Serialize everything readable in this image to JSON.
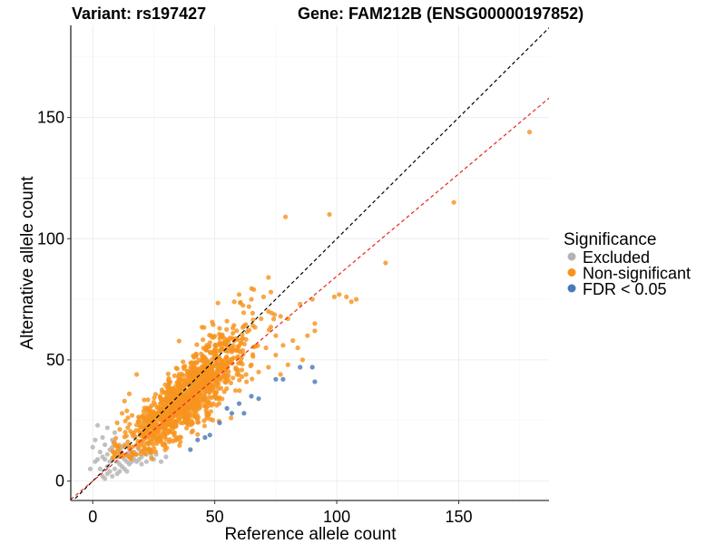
{
  "title": {
    "variant": "Variant: rs197427",
    "gene": "Gene: FAM212B (ENSG00000197852)"
  },
  "chart_data": {
    "type": "scatter",
    "xlabel": "Reference allele count",
    "ylabel": "Alternative allele count",
    "xlim": [
      -9,
      187
    ],
    "ylim": [
      -8,
      188
    ],
    "xticks": [
      0,
      50,
      100,
      150
    ],
    "yticks": [
      0,
      50,
      100,
      150
    ],
    "grid": true,
    "legend": {
      "title": "Significance",
      "position": "right",
      "entries": [
        {
          "label": "Excluded",
          "color": "#b3b3b3"
        },
        {
          "label": "Non-significant",
          "color": "#f7941d"
        },
        {
          "label": "FDR < 0.05",
          "color": "#4a7ab5"
        }
      ]
    },
    "reference_lines": [
      {
        "name": "identity",
        "slope": 1,
        "intercept": 0,
        "color": "#000000",
        "style": "dashed"
      },
      {
        "name": "fit",
        "slope": 0.845,
        "intercept": 0,
        "color": "#e8231f",
        "style": "dashed"
      }
    ],
    "series": [
      {
        "name": "Excluded",
        "color": "#b3b3b3",
        "points": [
          [
            2,
            23
          ],
          [
            1,
            17
          ],
          [
            0,
            14
          ],
          [
            1,
            8
          ],
          [
            -1,
            5
          ],
          [
            4,
            10
          ],
          [
            5,
            15
          ],
          [
            6,
            22
          ],
          [
            7,
            13
          ],
          [
            8,
            17
          ],
          [
            9,
            20
          ],
          [
            3,
            5
          ],
          [
            4,
            2
          ],
          [
            5,
            1
          ],
          [
            6,
            3
          ],
          [
            7,
            4
          ],
          [
            8,
            2
          ],
          [
            9,
            5
          ],
          [
            10,
            3
          ],
          [
            11,
            4
          ],
          [
            12,
            6
          ],
          [
            13,
            5
          ],
          [
            14,
            4
          ],
          [
            15,
            7
          ],
          [
            16,
            8
          ],
          [
            17,
            9
          ],
          [
            18,
            8
          ],
          [
            19,
            9
          ],
          [
            20,
            7
          ],
          [
            22,
            8
          ],
          [
            25,
            9
          ],
          [
            28,
            8
          ],
          [
            30,
            10
          ],
          [
            9,
            11
          ],
          [
            10,
            12
          ],
          [
            11,
            13
          ],
          [
            12,
            14
          ],
          [
            13,
            15
          ],
          [
            14,
            11
          ],
          [
            15,
            12
          ],
          [
            16,
            12
          ],
          [
            17,
            11
          ],
          [
            8,
            9
          ],
          [
            7,
            8
          ],
          [
            6,
            6
          ],
          [
            5,
            9
          ],
          [
            10,
            8
          ],
          [
            12,
            10
          ],
          [
            14,
            8
          ],
          [
            16,
            10
          ],
          [
            18,
            11
          ],
          [
            20,
            10
          ],
          [
            22,
            11
          ],
          [
            24,
            10
          ],
          [
            26,
            11
          ],
          [
            11,
            7
          ],
          [
            13,
            9
          ],
          [
            15,
            10
          ],
          [
            17,
            12
          ],
          [
            19,
            13
          ],
          [
            21,
            12
          ],
          [
            23,
            13
          ],
          [
            3,
            12
          ],
          [
            4,
            18
          ],
          [
            2,
            9
          ],
          [
            8,
            14
          ],
          [
            6,
            11
          ],
          [
            9,
            16
          ]
        ]
      },
      {
        "name": "Non-significant",
        "color": "#f7941d",
        "density": {
          "count": 1250,
          "x_mean": 38,
          "x_sd": 12,
          "x_min": 8,
          "x_max": 76,
          "y_slope": 0.86,
          "y_intercept": 2,
          "y_sd": 6.5,
          "y_min": 9,
          "seed": 42
        },
        "points": [
          [
            179,
            144
          ],
          [
            148,
            115
          ],
          [
            97,
            110
          ],
          [
            79,
            109
          ],
          [
            120,
            90
          ],
          [
            72,
            84
          ],
          [
            66,
            79
          ],
          [
            70,
            76
          ],
          [
            65,
            75
          ],
          [
            73,
            78
          ],
          [
            108,
            75
          ],
          [
            104,
            76
          ],
          [
            101,
            77
          ],
          [
            106,
            74
          ],
          [
            99,
            76
          ],
          [
            64,
            72
          ],
          [
            72,
            70
          ],
          [
            77,
            68
          ],
          [
            69,
            67
          ],
          [
            75,
            60
          ],
          [
            85,
            73
          ],
          [
            90,
            75
          ],
          [
            80,
            67
          ],
          [
            91,
            65
          ],
          [
            91,
            62
          ],
          [
            88,
            60
          ],
          [
            82,
            58
          ],
          [
            78,
            56
          ],
          [
            84,
            55
          ],
          [
            86,
            50
          ],
          [
            80,
            48
          ],
          [
            77,
            44
          ],
          [
            60,
            77
          ],
          [
            58,
            74
          ],
          [
            55,
            66
          ],
          [
            62,
            64
          ],
          [
            52,
            63
          ],
          [
            13,
            33
          ],
          [
            12,
            28
          ],
          [
            10,
            24
          ],
          [
            15,
            36
          ],
          [
            18,
            44
          ],
          [
            14,
            29
          ],
          [
            68,
            45
          ],
          [
            72,
            47
          ],
          [
            75,
            52
          ],
          [
            65,
            48
          ],
          [
            71,
            55
          ]
        ]
      },
      {
        "name": "FDR < 0.05",
        "color": "#4a7ab5",
        "points": [
          [
            40,
            13
          ],
          [
            43,
            17
          ],
          [
            46,
            18
          ],
          [
            48,
            19
          ],
          [
            52,
            24
          ],
          [
            57,
            28
          ],
          [
            62,
            28
          ],
          [
            65,
            35
          ],
          [
            68,
            34
          ],
          [
            75,
            42
          ],
          [
            78,
            42
          ],
          [
            85,
            47
          ],
          [
            90,
            47
          ],
          [
            91,
            41
          ],
          [
            60,
            32
          ],
          [
            55,
            30
          ]
        ]
      }
    ]
  }
}
